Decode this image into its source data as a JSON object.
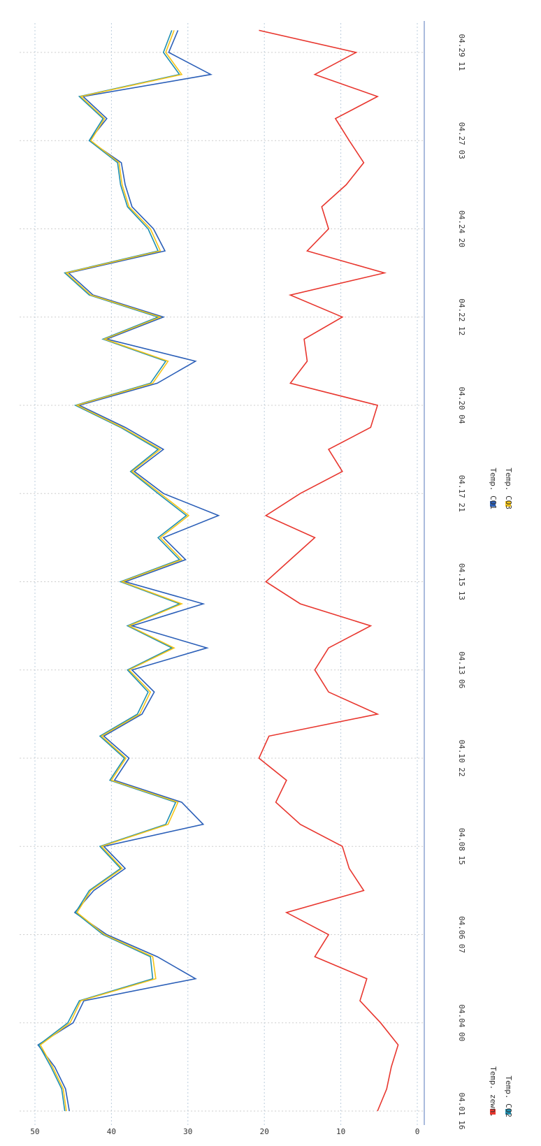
{
  "chart_data": {
    "type": "line",
    "categories": [
      "04.01 16",
      null,
      null,
      null,
      "04.04 00",
      null,
      null,
      null,
      "04.06 07",
      null,
      null,
      null,
      "04.08 15",
      null,
      null,
      null,
      "04.10 22",
      null,
      null,
      null,
      "04.13 06",
      null,
      null,
      null,
      "04.15 13",
      null,
      null,
      null,
      "04.17 21",
      null,
      null,
      null,
      "04.20 04",
      null,
      null,
      null,
      "04.22 12",
      null,
      null,
      null,
      "04.24 20",
      null,
      null,
      null,
      "04.27 03",
      null,
      null,
      null,
      "04.29 11",
      null
    ],
    "series": [
      {
        "name": "Temp. zewn.",
        "color": "#e8362e",
        "values": [
          5.2,
          4,
          3.4,
          2.5,
          4.8,
          7.5,
          6.6,
          13.4,
          11.6,
          17.1,
          7,
          8.9,
          9.8,
          15.3,
          18.5,
          17.1,
          20.7,
          19.4,
          5.2,
          11.6,
          13.4,
          11.6,
          6.1,
          15.3,
          19.8,
          16.6,
          13.4,
          19.8,
          15.3,
          9.8,
          11.6,
          6.1,
          5.2,
          16.6,
          14.4,
          14.8,
          9.8,
          16.6,
          4.3,
          14.4,
          11.6,
          12.5,
          9.3,
          7,
          8.9,
          10.7,
          5.2,
          13.4,
          8,
          20.7
        ]
      },
      {
        "name": "Temp. CO1",
        "color": "#2b5fb8",
        "values": [
          45.5,
          46,
          47.4,
          49.6,
          45,
          43.6,
          29,
          34,
          40.6,
          44.8,
          42.3,
          38.2,
          41,
          28,
          30.8,
          39.6,
          37.7,
          41,
          36,
          34.4,
          37.3,
          27.5,
          37.3,
          28,
          38.2,
          30.3,
          33.2,
          26,
          33.2,
          37,
          33.2,
          38.2,
          44.2,
          34,
          29,
          40.6,
          33.2,
          42.4,
          45.6,
          33,
          34.5,
          37.3,
          38.2,
          38.7,
          42.9,
          40.6,
          43.7,
          27,
          32.5,
          31.3
        ]
      },
      {
        "name": "Temp. CO2",
        "color": "#1f8fb0",
        "values": [
          46.1,
          46.5,
          47.9,
          49.5,
          45.7,
          44.2,
          34.6,
          34.9,
          41.1,
          44.7,
          42.9,
          38.8,
          41.5,
          32.9,
          31.6,
          40.2,
          38.3,
          41.5,
          36.6,
          35.2,
          37.9,
          32.1,
          37.9,
          31.1,
          38.8,
          31.1,
          33.9,
          30.2,
          33.9,
          37.5,
          33.9,
          38.8,
          44.7,
          34.9,
          32.9,
          41.1,
          33.9,
          42.9,
          46.1,
          33.9,
          35.2,
          37.9,
          38.8,
          39.2,
          42.9,
          41.1,
          44.2,
          31.1,
          33.2,
          32.1
        ]
      },
      {
        "name": "Temp. CO3",
        "color": "#f5c518",
        "values": [
          45.9,
          46.3,
          47.7,
          49.3,
          45.4,
          44,
          34.2,
          34.6,
          40.9,
          44.5,
          42.7,
          38.6,
          41.3,
          32.6,
          31.3,
          40,
          38.1,
          41.3,
          36.3,
          34.9,
          37.7,
          31.8,
          37.7,
          30.8,
          38.6,
          30.8,
          33.6,
          29.9,
          33.6,
          37.3,
          33.6,
          38.6,
          44.5,
          34.6,
          32.6,
          40.9,
          33.6,
          42.7,
          45.9,
          33.6,
          34.9,
          37.7,
          38.6,
          39,
          42.7,
          40.9,
          44,
          30.8,
          32.9,
          31.8
        ]
      }
    ],
    "ylim": [
      0,
      52
    ],
    "yticks": [
      0,
      10,
      20,
      30,
      40,
      50
    ],
    "grid": true
  }
}
